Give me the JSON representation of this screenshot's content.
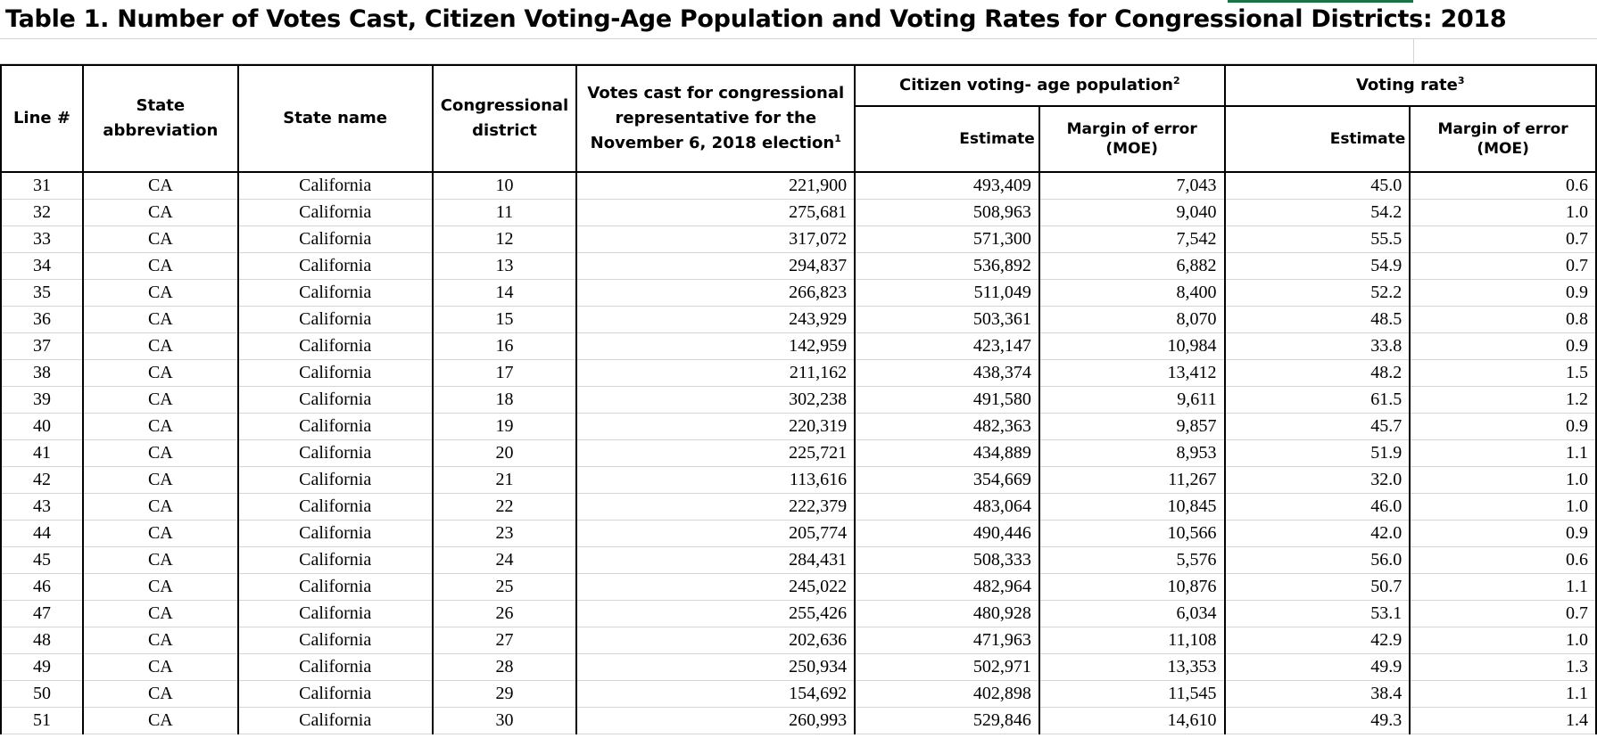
{
  "title": "Table 1. Number of Votes Cast, Citizen Voting-Age Population and Voting Rates for Congressional Districts: 2018",
  "headers": {
    "line": "Line #",
    "state_abbr": "State abbreviation",
    "state_name": "State name",
    "district": "Congressional district",
    "votes_cast": "Votes cast for congressional representative for the November 6, 2018 election",
    "votes_cast_note": "1",
    "cvap_group": "Citizen voting- age population",
    "cvap_note": "2",
    "rate_group": "Voting rate",
    "rate_note": "3",
    "estimate": "Estimate",
    "moe": "Margin of error (MOE)"
  },
  "rows": [
    {
      "line": "31",
      "abbr": "CA",
      "state": "California",
      "district": "10",
      "votes": "221,900",
      "cvap_est": "493,409",
      "cvap_moe": "7,043",
      "rate_est": "45.0",
      "rate_moe": "0.6"
    },
    {
      "line": "32",
      "abbr": "CA",
      "state": "California",
      "district": "11",
      "votes": "275,681",
      "cvap_est": "508,963",
      "cvap_moe": "9,040",
      "rate_est": "54.2",
      "rate_moe": "1.0"
    },
    {
      "line": "33",
      "abbr": "CA",
      "state": "California",
      "district": "12",
      "votes": "317,072",
      "cvap_est": "571,300",
      "cvap_moe": "7,542",
      "rate_est": "55.5",
      "rate_moe": "0.7"
    },
    {
      "line": "34",
      "abbr": "CA",
      "state": "California",
      "district": "13",
      "votes": "294,837",
      "cvap_est": "536,892",
      "cvap_moe": "6,882",
      "rate_est": "54.9",
      "rate_moe": "0.7"
    },
    {
      "line": "35",
      "abbr": "CA",
      "state": "California",
      "district": "14",
      "votes": "266,823",
      "cvap_est": "511,049",
      "cvap_moe": "8,400",
      "rate_est": "52.2",
      "rate_moe": "0.9"
    },
    {
      "line": "36",
      "abbr": "CA",
      "state": "California",
      "district": "15",
      "votes": "243,929",
      "cvap_est": "503,361",
      "cvap_moe": "8,070",
      "rate_est": "48.5",
      "rate_moe": "0.8"
    },
    {
      "line": "37",
      "abbr": "CA",
      "state": "California",
      "district": "16",
      "votes": "142,959",
      "cvap_est": "423,147",
      "cvap_moe": "10,984",
      "rate_est": "33.8",
      "rate_moe": "0.9"
    },
    {
      "line": "38",
      "abbr": "CA",
      "state": "California",
      "district": "17",
      "votes": "211,162",
      "cvap_est": "438,374",
      "cvap_moe": "13,412",
      "rate_est": "48.2",
      "rate_moe": "1.5"
    },
    {
      "line": "39",
      "abbr": "CA",
      "state": "California",
      "district": "18",
      "votes": "302,238",
      "cvap_est": "491,580",
      "cvap_moe": "9,611",
      "rate_est": "61.5",
      "rate_moe": "1.2"
    },
    {
      "line": "40",
      "abbr": "CA",
      "state": "California",
      "district": "19",
      "votes": "220,319",
      "cvap_est": "482,363",
      "cvap_moe": "9,857",
      "rate_est": "45.7",
      "rate_moe": "0.9"
    },
    {
      "line": "41",
      "abbr": "CA",
      "state": "California",
      "district": "20",
      "votes": "225,721",
      "cvap_est": "434,889",
      "cvap_moe": "8,953",
      "rate_est": "51.9",
      "rate_moe": "1.1"
    },
    {
      "line": "42",
      "abbr": "CA",
      "state": "California",
      "district": "21",
      "votes": "113,616",
      "cvap_est": "354,669",
      "cvap_moe": "11,267",
      "rate_est": "32.0",
      "rate_moe": "1.0"
    },
    {
      "line": "43",
      "abbr": "CA",
      "state": "California",
      "district": "22",
      "votes": "222,379",
      "cvap_est": "483,064",
      "cvap_moe": "10,845",
      "rate_est": "46.0",
      "rate_moe": "1.0"
    },
    {
      "line": "44",
      "abbr": "CA",
      "state": "California",
      "district": "23",
      "votes": "205,774",
      "cvap_est": "490,446",
      "cvap_moe": "10,566",
      "rate_est": "42.0",
      "rate_moe": "0.9"
    },
    {
      "line": "45",
      "abbr": "CA",
      "state": "California",
      "district": "24",
      "votes": "284,431",
      "cvap_est": "508,333",
      "cvap_moe": "5,576",
      "rate_est": "56.0",
      "rate_moe": "0.6"
    },
    {
      "line": "46",
      "abbr": "CA",
      "state": "California",
      "district": "25",
      "votes": "245,022",
      "cvap_est": "482,964",
      "cvap_moe": "10,876",
      "rate_est": "50.7",
      "rate_moe": "1.1"
    },
    {
      "line": "47",
      "abbr": "CA",
      "state": "California",
      "district": "26",
      "votes": "255,426",
      "cvap_est": "480,928",
      "cvap_moe": "6,034",
      "rate_est": "53.1",
      "rate_moe": "0.7"
    },
    {
      "line": "48",
      "abbr": "CA",
      "state": "California",
      "district": "27",
      "votes": "202,636",
      "cvap_est": "471,963",
      "cvap_moe": "11,108",
      "rate_est": "42.9",
      "rate_moe": "1.0"
    },
    {
      "line": "49",
      "abbr": "CA",
      "state": "California",
      "district": "28",
      "votes": "250,934",
      "cvap_est": "502,971",
      "cvap_moe": "13,353",
      "rate_est": "49.9",
      "rate_moe": "1.3"
    },
    {
      "line": "50",
      "abbr": "CA",
      "state": "California",
      "district": "29",
      "votes": "154,692",
      "cvap_est": "402,898",
      "cvap_moe": "11,545",
      "rate_est": "38.4",
      "rate_moe": "1.1"
    },
    {
      "line": "51",
      "abbr": "CA",
      "state": "California",
      "district": "30",
      "votes": "260,993",
      "cvap_est": "529,846",
      "cvap_moe": "14,610",
      "rate_est": "49.3",
      "rate_moe": "1.4"
    }
  ]
}
